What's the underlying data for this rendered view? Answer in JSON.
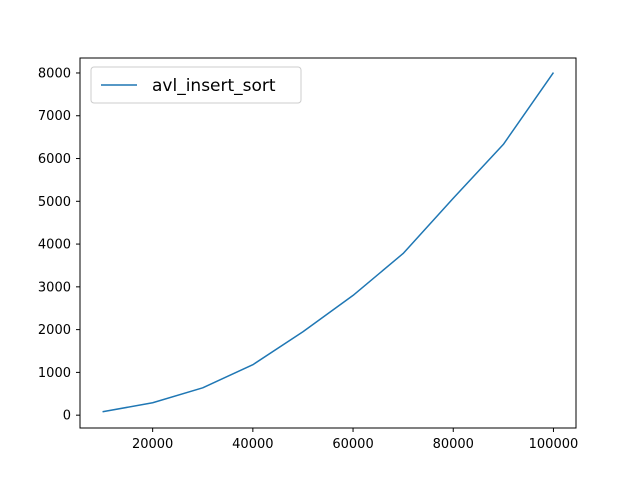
{
  "chart_data": {
    "type": "line",
    "title": "",
    "xlabel": "",
    "ylabel": "",
    "xlim": [
      5500,
      104500
    ],
    "ylim": [
      -300,
      8350
    ],
    "x_ticks": [
      20000,
      40000,
      60000,
      80000,
      100000
    ],
    "y_ticks": [
      0,
      1000,
      2000,
      3000,
      4000,
      5000,
      6000,
      7000,
      8000
    ],
    "x_tick_labels": [
      "20000",
      "40000",
      "60000",
      "80000",
      "100000"
    ],
    "y_tick_labels": [
      "0",
      "1000",
      "2000",
      "3000",
      "4000",
      "5000",
      "6000",
      "7000",
      "8000"
    ],
    "grid": false,
    "legend": {
      "placement": "top-left",
      "entries": [
        "avl_insert_sort"
      ]
    },
    "series": [
      {
        "name": "avl_insert_sort",
        "color": "#1f77b4",
        "x": [
          10000,
          20000,
          30000,
          40000,
          50000,
          60000,
          70000,
          80000,
          90000,
          100000
        ],
        "y": [
          80,
          290,
          640,
          1180,
          1950,
          2800,
          3780,
          5070,
          6330,
          8010
        ]
      }
    ]
  }
}
